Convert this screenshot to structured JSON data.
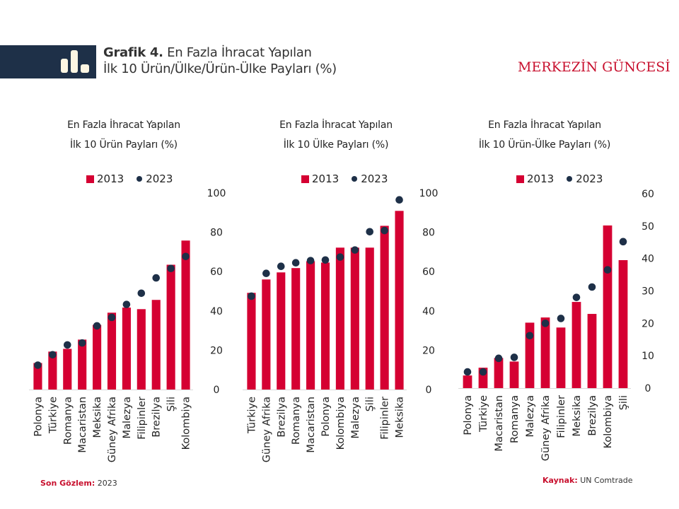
{
  "header": {
    "title_bold": "Grafik 4.",
    "title_line1": "En Fazla İhracat Yapılan",
    "title_line2": "İlk 10 Ürün/Ülke/Ürün-Ülke Payları (%)",
    "brand": "MERKEZİN GÜNCESİ",
    "icon": "bar-chart-icon"
  },
  "colors": {
    "bar_2013": "#d50032",
    "dot_2023": "#1e3048",
    "header_band": "#1e3048",
    "brand": "#c8102e"
  },
  "footer": {
    "left_label": "Son Gözlem:",
    "left_value": "2023",
    "right_label": "Kaynak:",
    "right_value": "UN Comtrade"
  },
  "chart_data": [
    {
      "type": "bar",
      "title_line1": "En Fazla İhracat Yapılan",
      "title_line2": "İlk 10 Ürün Payları (%)",
      "legend": [
        "2013",
        "2023"
      ],
      "legend_position": "top",
      "ylim": [
        0,
        100
      ],
      "yticks": [
        0,
        20,
        40,
        60,
        80,
        100
      ],
      "categories": [
        "Polonya",
        "Türkiye",
        "Romanya",
        "Macaristan",
        "Meksika",
        "Güney Afrika",
        "Malezya",
        "Filipinler",
        "Brezilya",
        "Şili",
        "Kolombiya"
      ],
      "series": [
        {
          "name": "2013",
          "kind": "bar",
          "values": [
            13.5,
            19.3,
            20.7,
            25.4,
            32.9,
            39.1,
            41.7,
            40.9,
            45.6,
            63.5,
            75.8
          ]
        },
        {
          "name": "2023",
          "kind": "dot",
          "values": [
            12.4,
            17.7,
            22.7,
            23.7,
            32.4,
            36.7,
            43.3,
            49.0,
            56.8,
            61.6,
            67.7
          ]
        }
      ]
    },
    {
      "type": "bar",
      "title_line1": "En Fazla İhracat Yapılan",
      "title_line2": "İlk 10 Ülke Payları (%)",
      "legend": [
        "2013",
        "2023"
      ],
      "legend_position": "top",
      "ylim": [
        0,
        100
      ],
      "yticks": [
        0,
        20,
        40,
        60,
        80,
        100
      ],
      "categories": [
        "Türkiye",
        "Güney Afrika",
        "Brezilya",
        "Romanya",
        "Macaristan",
        "Polonya",
        "Kolombiya",
        "Malezya",
        "Şili",
        "Filipinler",
        "Meksika"
      ],
      "series": [
        {
          "name": "2013",
          "kind": "bar",
          "values": [
            49.2,
            56.0,
            59.6,
            61.8,
            65.3,
            64.6,
            72.2,
            72.2,
            72.2,
            83.3,
            90.9
          ]
        },
        {
          "name": "2023",
          "kind": "dot",
          "values": [
            47.5,
            59.1,
            62.7,
            64.5,
            65.6,
            65.9,
            67.4,
            71.0,
            80.3,
            80.9,
            96.5
          ]
        }
      ]
    },
    {
      "type": "bar",
      "title_line1": "En Fazla İhracat Yapılan",
      "title_line2": "İlk 10 Ürün-Ülke Payları (%)",
      "legend": [
        "2013",
        "2023"
      ],
      "legend_position": "top",
      "ylim": [
        0,
        60
      ],
      "yticks": [
        0,
        10,
        20,
        30,
        40,
        50,
        60
      ],
      "categories": [
        "Polonya",
        "Türkiye",
        "Macaristan",
        "Romanya",
        "Malezya",
        "Güney Afrika",
        "Filipinler",
        "Meksika",
        "Brezilya",
        "Kolombiya",
        "Şili"
      ],
      "series": [
        {
          "name": "2013",
          "kind": "bar",
          "values": [
            3.9,
            6.3,
            9.3,
            8.2,
            20.2,
            21.8,
            18.7,
            26.6,
            22.9,
            50.2,
            39.5
          ]
        },
        {
          "name": "2023",
          "kind": "dot",
          "values": [
            5.0,
            5.0,
            9.2,
            9.5,
            16.2,
            20.0,
            21.5,
            28.0,
            31.2,
            36.5,
            45.2
          ]
        }
      ]
    }
  ]
}
